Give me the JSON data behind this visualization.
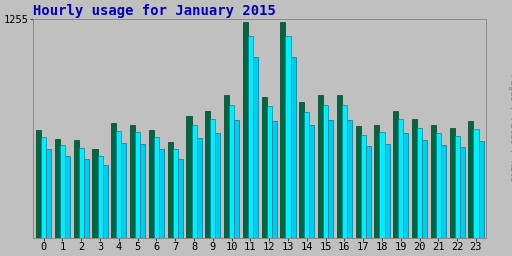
{
  "title": "Hourly usage for January 2015",
  "hours": [
    0,
    1,
    2,
    3,
    4,
    5,
    6,
    7,
    8,
    9,
    10,
    11,
    12,
    13,
    14,
    15,
    16,
    17,
    18,
    19,
    20,
    21,
    22,
    23
  ],
  "pages": [
    620,
    570,
    560,
    510,
    660,
    650,
    620,
    550,
    700,
    730,
    820,
    1240,
    810,
    1240,
    780,
    820,
    820,
    640,
    650,
    730,
    680,
    650,
    630,
    670
  ],
  "files": [
    580,
    530,
    515,
    470,
    615,
    605,
    578,
    510,
    650,
    680,
    760,
    1160,
    755,
    1160,
    725,
    760,
    760,
    592,
    605,
    680,
    630,
    600,
    585,
    625
  ],
  "hits": [
    510,
    470,
    455,
    415,
    545,
    540,
    510,
    455,
    575,
    600,
    675,
    1040,
    670,
    1040,
    645,
    675,
    675,
    525,
    540,
    600,
    560,
    535,
    520,
    555
  ],
  "ymax": 1255,
  "ytick": 1255,
  "color_pages": "#006644",
  "color_files": "#00EEFF",
  "color_hits": "#00CCEE",
  "edge_pages": "#004422",
  "edge_files": "#008899",
  "edge_hits": "#007799",
  "bg_color": "#C0C0C0",
  "title_color": "#0000BB",
  "ylabel_color": "#00BBCC",
  "title_fontsize": 10,
  "axis_fontsize": 7.5,
  "bar_width": 0.27
}
